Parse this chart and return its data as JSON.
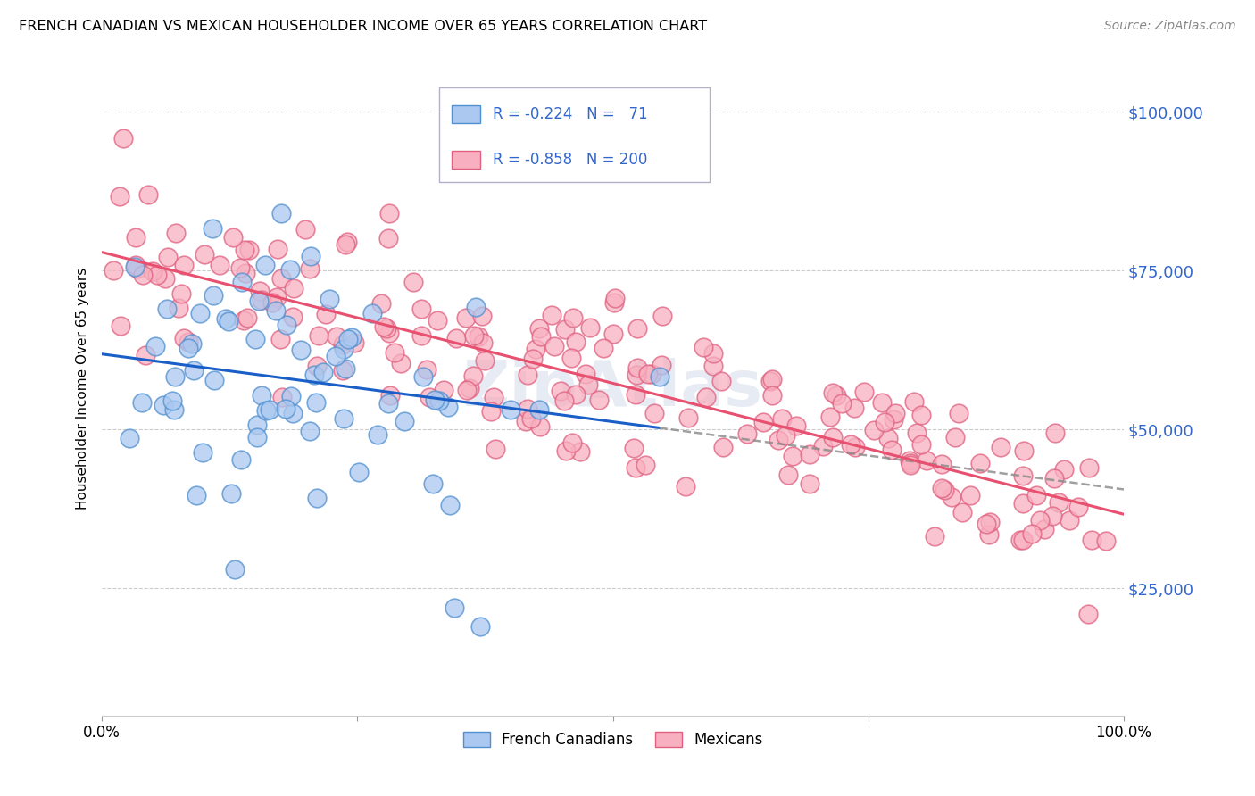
{
  "title": "FRENCH CANADIAN VS MEXICAN HOUSEHOLDER INCOME OVER 65 YEARS CORRELATION CHART",
  "source": "Source: ZipAtlas.com",
  "ylabel": "Householder Income Over 65 years",
  "ytick_labels": [
    "$25,000",
    "$50,000",
    "$75,000",
    "$100,000"
  ],
  "ytick_values": [
    25000,
    50000,
    75000,
    100000
  ],
  "ymin": 5000,
  "ymax": 108000,
  "xmin": 0.0,
  "xmax": 1.0,
  "color_fc_fill": "#aac8f0",
  "color_fc_edge": "#5090d0",
  "color_mx_fill": "#f8b0c0",
  "color_mx_edge": "#e06080",
  "color_fc_line": "#1a5fc8",
  "color_mx_line": "#e85070",
  "color_tick_label": "#3366cc",
  "watermark": "ZipAtlas",
  "fc_n": 71,
  "mx_n": 200,
  "fc_R": -0.224,
  "mx_R": -0.858,
  "legend_box_color": "#e8e8f0",
  "legend_edge_color": "#b0b0c8"
}
